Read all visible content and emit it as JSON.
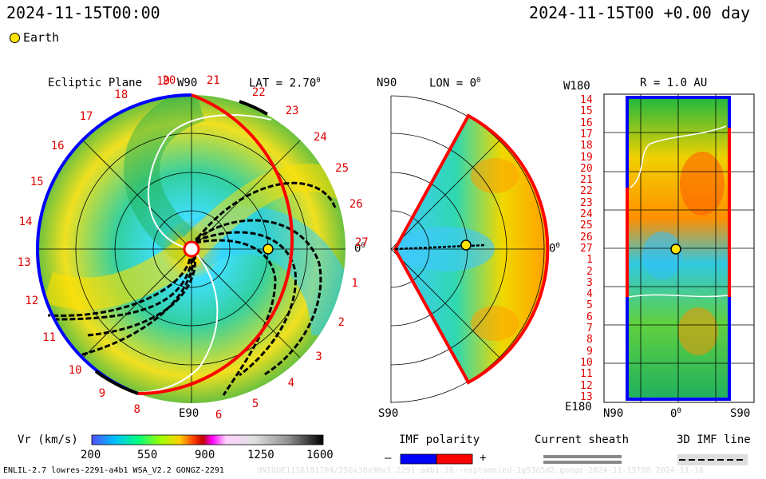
{
  "header": {
    "timestamp_left": "2024-11-15T00:00",
    "timestamp_right": "2024-11-15T00 +0.00 day"
  },
  "legend": {
    "earth_label": "Earth",
    "earth_color": "#ffe500"
  },
  "ecliptic_panel": {
    "title": "Ecliptic Plane",
    "top_label": "W90",
    "bottom_label": "E90",
    "right_label": "0",
    "lat_label": "LAT = 2.70",
    "lat_suffix": "0",
    "carrington_numbers": [
      "20",
      "21",
      "22",
      "23",
      "24",
      "25",
      "26",
      "27",
      "1",
      "2",
      "3",
      "4",
      "5",
      "6",
      "8",
      "9",
      "10",
      "11",
      "12",
      "13",
      "14",
      "15",
      "16",
      "17",
      "18",
      "19"
    ]
  },
  "meridional_panel": {
    "top_label": "N90",
    "bottom_label": "S90",
    "lon_label": "LON = 0",
    "lon_suffix": "0",
    "right_label": "0"
  },
  "radial_panel": {
    "title": "R = 1.0 AU",
    "top_left_label": "W180",
    "bottom_left_label": "E180",
    "bottom_labels": [
      "N90",
      "0",
      "S90"
    ],
    "row_numbers": [
      "14",
      "15",
      "16",
      "17",
      "18",
      "19",
      "20",
      "21",
      "22",
      "23",
      "24",
      "25",
      "26",
      "27",
      "1",
      "2",
      "3",
      "4",
      "5",
      "6",
      "7",
      "8",
      "9",
      "10",
      "11",
      "12",
      "13"
    ]
  },
  "colorbar": {
    "label": "Vr (km/s)",
    "ticks": [
      "200",
      "550",
      "900",
      "1250",
      "1600"
    ]
  },
  "imf": {
    "title": "IMF polarity",
    "minus": "–",
    "plus": "+",
    "neg_color": "#0000ff",
    "pos_color": "#ff0000"
  },
  "current_sheath": {
    "title": "Current sheath"
  },
  "imf_line": {
    "title": "3D IMF line"
  },
  "footer": {
    "left": "ENLIL-2.7 lowres-2291-a4b1 WSA_V2.2 GONGZ-2291",
    "right": "UNIQUE1116181704/256x30x90x1.2291-a4b1.16--nsptomnied-1g53d5d2.gongz-2024-11-15T00 2024-11-16"
  }
}
